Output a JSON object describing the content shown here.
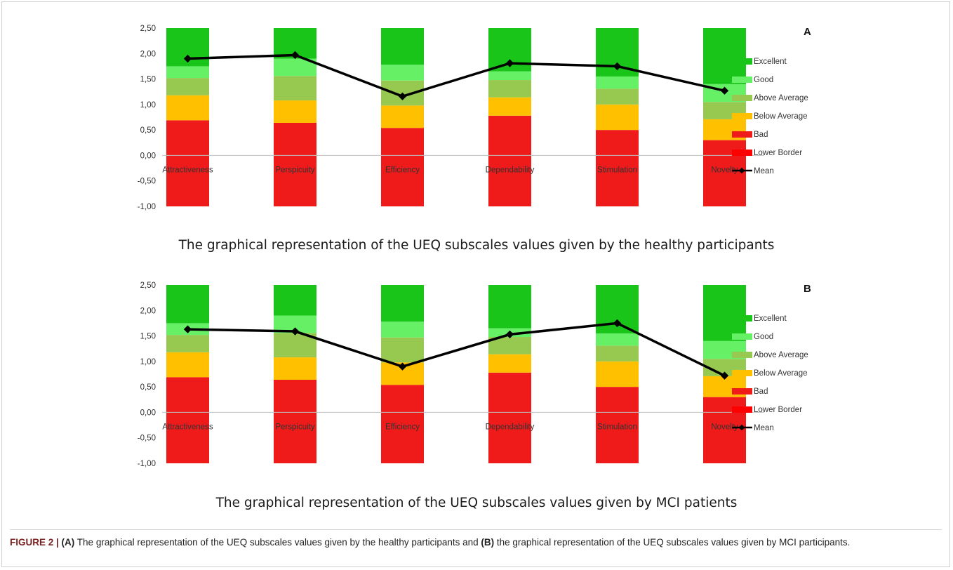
{
  "colors": {
    "excellent": "#19c519",
    "good": "#66f066",
    "above_average": "#97c950",
    "below_average": "#ffc000",
    "bad": "#ef1b1b",
    "lower_border": "#ff0000",
    "mean": "#000000"
  },
  "chart_data": [
    {
      "panel": "A",
      "type": "bar",
      "title": "The graphical representation of the UEQ subscales values given by the healthy participants",
      "categories": [
        "Attractiveness",
        "Perspicuity",
        "Efficiency",
        "Dependability",
        "Stimulation",
        "Novelty"
      ],
      "ylim": [
        -1,
        2.5
      ],
      "yticks": [
        "2,50",
        "2,00",
        "1,50",
        "1,00",
        "0,50",
        "0,00",
        "-0,50",
        "-1,00"
      ],
      "legend_position": "right",
      "series": [
        {
          "name": "Lower Border",
          "values": [
            -1,
            -1,
            -1,
            -1,
            -1,
            -1
          ]
        },
        {
          "name": "Bad",
          "values": [
            0.69,
            0.64,
            0.54,
            0.78,
            0.5,
            0.3
          ]
        },
        {
          "name": "Below Average",
          "values": [
            1.18,
            1.08,
            0.98,
            1.14,
            1.0,
            0.71
          ]
        },
        {
          "name": "Above Average",
          "values": [
            1.52,
            1.56,
            1.47,
            1.48,
            1.31,
            1.05
          ]
        },
        {
          "name": "Good",
          "values": [
            1.75,
            1.9,
            1.78,
            1.65,
            1.55,
            1.4
          ]
        },
        {
          "name": "Excellent",
          "values": [
            2.5,
            2.5,
            2.5,
            2.5,
            2.5,
            2.5
          ]
        },
        {
          "name": "Mean",
          "values": [
            1.9,
            1.97,
            1.16,
            1.81,
            1.75,
            1.27
          ]
        }
      ]
    },
    {
      "panel": "B",
      "type": "bar",
      "title": "The graphical representation of the UEQ subscales values given by MCI patients",
      "categories": [
        "Attractiveness",
        "Perspicuity",
        "Efficiency",
        "Dependability",
        "Stimulation",
        "Novelty"
      ],
      "ylim": [
        -1,
        2.5
      ],
      "yticks": [
        "2,50",
        "2,00",
        "1,50",
        "1,00",
        "0,50",
        "0,00",
        "-0,50",
        "-1,00"
      ],
      "legend_position": "right",
      "series": [
        {
          "name": "Lower Border",
          "values": [
            -1,
            -1,
            -1,
            -1,
            -1,
            -1
          ]
        },
        {
          "name": "Bad",
          "values": [
            0.69,
            0.64,
            0.54,
            0.78,
            0.5,
            0.3
          ]
        },
        {
          "name": "Below Average",
          "values": [
            1.18,
            1.08,
            0.98,
            1.14,
            1.0,
            0.71
          ]
        },
        {
          "name": "Above Average",
          "values": [
            1.52,
            1.56,
            1.47,
            1.48,
            1.31,
            1.05
          ]
        },
        {
          "name": "Good",
          "values": [
            1.75,
            1.9,
            1.78,
            1.65,
            1.55,
            1.4
          ]
        },
        {
          "name": "Excellent",
          "values": [
            2.5,
            2.5,
            2.5,
            2.5,
            2.5,
            2.5
          ]
        },
        {
          "name": "Mean",
          "values": [
            1.63,
            1.59,
            0.9,
            1.53,
            1.75,
            0.72
          ]
        }
      ]
    }
  ],
  "legend": {
    "items": [
      "Excellent",
      "Good",
      "Above Average",
      "Below Average",
      "Bad",
      "Lower Border",
      "Mean"
    ]
  },
  "figure_caption": {
    "label": "FIGURE 2 | ",
    "a_label": "(A)",
    "a_text": " The graphical representation of the UEQ subscales values given by the healthy participants and ",
    "b_label": "(B)",
    "b_text": " the graphical representation of the UEQ subscales values given by MCI participants."
  }
}
